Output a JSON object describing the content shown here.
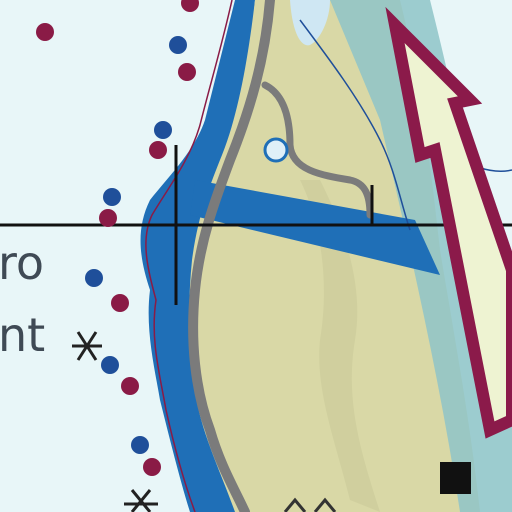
{
  "labels": {
    "label_upper": "ro",
    "label_lower": "nt"
  },
  "symbols": {
    "rocks": [
      "rock-awash-icon",
      "rock-awash-icon"
    ],
    "arrow": "traffic-direction-arrow-icon",
    "square": "beacon-square-icon"
  },
  "colors": {
    "water": "#e8f6f8",
    "land": "#d9d8a6",
    "shallow": "#1f6fb7",
    "route": "#7b7b7b",
    "arrow_outline": "#8b1a4a",
    "arrow_fill": "#eef3d2",
    "dot_blue": "#1f4f9a",
    "dot_red": "#8a1b46",
    "lane": "#8ec4c8"
  }
}
